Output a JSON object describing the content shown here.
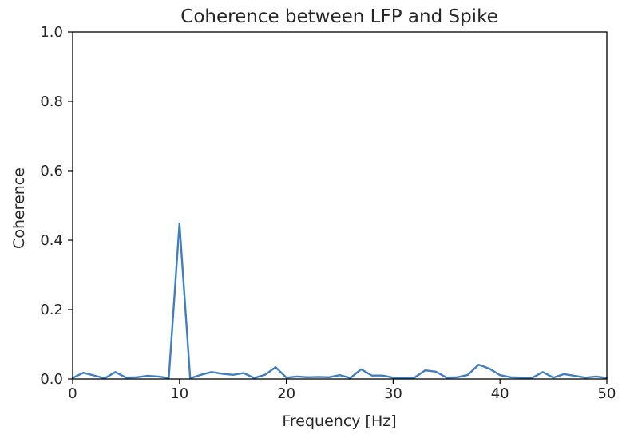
{
  "chart_data": {
    "type": "line",
    "title": "Coherence between LFP and Spike",
    "xlabel": "Frequency [Hz]",
    "ylabel": "Coherence",
    "xlim": [
      0,
      50
    ],
    "ylim": [
      0,
      1.0
    ],
    "xticks": [
      0,
      10,
      20,
      30,
      40,
      50
    ],
    "xtick_labels": [
      "0",
      "10",
      "20",
      "30",
      "40",
      "50"
    ],
    "yticks": [
      0.0,
      0.2,
      0.4,
      0.6,
      0.8,
      1.0
    ],
    "ytick_labels": [
      "0.0",
      "0.2",
      "0.4",
      "0.6",
      "0.8",
      "1.0"
    ],
    "grid": false,
    "legend": false,
    "series": [
      {
        "color": "#3f7fbf",
        "x": [
          0,
          1,
          2,
          3,
          4,
          5,
          6,
          7,
          8,
          9,
          10,
          11,
          12,
          13,
          14,
          15,
          16,
          17,
          18,
          19,
          20,
          21,
          22,
          23,
          24,
          25,
          26,
          27,
          28,
          29,
          30,
          31,
          32,
          33,
          34,
          35,
          36,
          37,
          38,
          39,
          40,
          41,
          42,
          43,
          44,
          45,
          46,
          47,
          48,
          49,
          50
        ],
        "y": [
          0.003,
          0.018,
          0.01,
          0.002,
          0.02,
          0.004,
          0.005,
          0.009,
          0.007,
          0.003,
          0.448,
          0.002,
          0.012,
          0.02,
          0.015,
          0.012,
          0.017,
          0.003,
          0.012,
          0.034,
          0.004,
          0.007,
          0.005,
          0.006,
          0.005,
          0.011,
          0.003,
          0.028,
          0.01,
          0.01,
          0.004,
          0.004,
          0.004,
          0.025,
          0.021,
          0.004,
          0.005,
          0.012,
          0.041,
          0.03,
          0.011,
          0.005,
          0.004,
          0.003,
          0.02,
          0.004,
          0.014,
          0.009,
          0.004,
          0.007,
          0.003
        ]
      }
    ]
  }
}
